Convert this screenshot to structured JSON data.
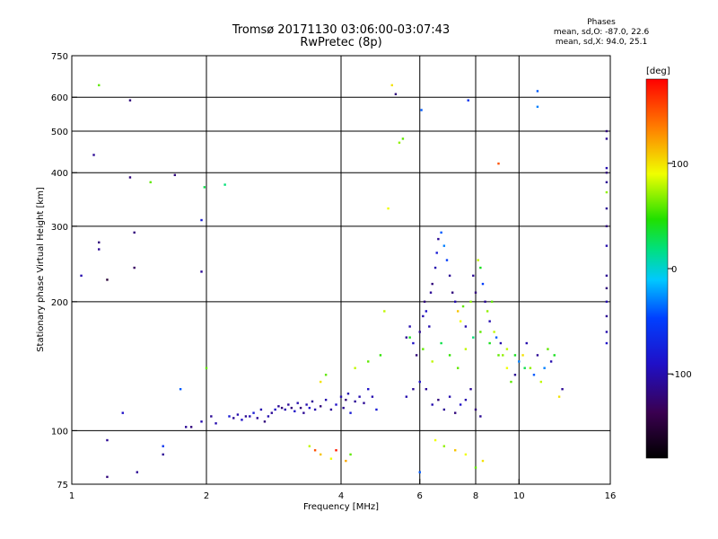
{
  "title_line1": "Tromsø 20171130 03:06:00-03:07:43",
  "title_line2": "RwPretec (8p)",
  "phases": {
    "heading": "Phases",
    "line_o": "mean, sd,O: -87.0, 22.6",
    "line_x": "mean, sd,X:  94.0, 25.1"
  },
  "chart_data": {
    "type": "scatter",
    "xlabel": "Frequency [MHz]",
    "ylabel": "Stationary phase Virtual Height [km]",
    "xscale": "log",
    "yscale": "log",
    "xlim": [
      1,
      16
    ],
    "ylim": [
      75,
      750
    ],
    "xticks": [
      1,
      2,
      4,
      6,
      8,
      10,
      16
    ],
    "yticks": [
      75,
      100,
      200,
      300,
      400,
      500,
      600,
      750
    ],
    "x_gridlines": [
      2,
      4,
      6,
      8,
      10
    ],
    "y_gridlines": [
      100,
      200,
      300,
      400,
      500,
      600
    ],
    "colorbar": {
      "label": "[deg]",
      "range": [
        -180,
        180
      ],
      "ticks": [
        100,
        0,
        -100
      ]
    },
    "series": [
      {
        "values_note": "x = frequency (MHz), y = virtual height (km), phase = colour (deg)",
        "points": [
          [
            1.05,
            230,
            -100
          ],
          [
            1.12,
            440,
            -110
          ],
          [
            1.15,
            640,
            60
          ],
          [
            1.15,
            275,
            -120
          ],
          [
            1.15,
            265,
            -110
          ],
          [
            1.2,
            225,
            -150
          ],
          [
            1.2,
            95,
            -110
          ],
          [
            1.2,
            78,
            -120
          ],
          [
            1.3,
            110,
            -90
          ],
          [
            1.35,
            590,
            -120
          ],
          [
            1.35,
            390,
            -120
          ],
          [
            1.38,
            240,
            -130
          ],
          [
            1.38,
            290,
            -120
          ],
          [
            1.4,
            80,
            -110
          ],
          [
            1.5,
            380,
            60
          ],
          [
            1.6,
            92,
            -60
          ],
          [
            1.6,
            88,
            -110
          ],
          [
            1.7,
            395,
            -120
          ],
          [
            1.75,
            125,
            -40
          ],
          [
            1.8,
            102,
            -110
          ],
          [
            1.85,
            102,
            -120
          ],
          [
            1.95,
            105,
            -100
          ],
          [
            1.95,
            235,
            -110
          ],
          [
            1.95,
            310,
            -80
          ],
          [
            1.98,
            370,
            30
          ],
          [
            2.0,
            140,
            60
          ],
          [
            2.05,
            108,
            -110
          ],
          [
            2.1,
            104,
            -100
          ],
          [
            2.2,
            375,
            20
          ],
          [
            2.25,
            108,
            -80
          ],
          [
            2.3,
            107,
            -110
          ],
          [
            2.35,
            109,
            -100
          ],
          [
            2.4,
            106,
            -90
          ],
          [
            2.45,
            108,
            -110
          ],
          [
            2.5,
            108,
            -100
          ],
          [
            2.55,
            110,
            -80
          ],
          [
            2.6,
            107,
            -110
          ],
          [
            2.65,
            112,
            -100
          ],
          [
            2.7,
            105,
            -120
          ],
          [
            2.75,
            108,
            -100
          ],
          [
            2.8,
            110,
            -110
          ],
          [
            2.85,
            112,
            -90
          ],
          [
            2.9,
            114,
            -110
          ],
          [
            2.95,
            113,
            -120
          ],
          [
            3.0,
            112,
            -100
          ],
          [
            3.05,
            115,
            -110
          ],
          [
            3.1,
            113,
            -120
          ],
          [
            3.15,
            111,
            -90
          ],
          [
            3.2,
            116,
            -100
          ],
          [
            3.25,
            113,
            -120
          ],
          [
            3.3,
            110,
            -110
          ],
          [
            3.35,
            115,
            -100
          ],
          [
            3.4,
            113,
            -90
          ],
          [
            3.45,
            117,
            -110
          ],
          [
            3.5,
            112,
            -100
          ],
          [
            3.6,
            114,
            -120
          ],
          [
            3.7,
            118,
            -100
          ],
          [
            3.8,
            112,
            -110
          ],
          [
            3.9,
            115,
            -90
          ],
          [
            4.0,
            120,
            -100
          ],
          [
            4.05,
            113,
            -110
          ],
          [
            4.1,
            118,
            -120
          ],
          [
            4.15,
            122,
            -100
          ],
          [
            4.2,
            110,
            -80
          ],
          [
            4.3,
            117,
            -110
          ],
          [
            4.4,
            120,
            -100
          ],
          [
            4.5,
            116,
            -110
          ],
          [
            4.6,
            125,
            -90
          ],
          [
            4.7,
            120,
            -100
          ],
          [
            4.8,
            112,
            -80
          ],
          [
            3.4,
            92,
            80
          ],
          [
            3.5,
            90,
            150
          ],
          [
            3.6,
            88,
            110
          ],
          [
            3.8,
            86,
            90
          ],
          [
            3.9,
            90,
            170
          ],
          [
            4.1,
            85,
            120
          ],
          [
            4.2,
            88,
            60
          ],
          [
            3.6,
            130,
            100
          ],
          [
            3.7,
            135,
            60
          ],
          [
            4.3,
            140,
            80
          ],
          [
            4.6,
            145,
            60
          ],
          [
            4.9,
            150,
            50
          ],
          [
            5.0,
            190,
            80
          ],
          [
            5.1,
            330,
            90
          ],
          [
            5.2,
            640,
            100
          ],
          [
            5.3,
            610,
            -120
          ],
          [
            5.4,
            470,
            70
          ],
          [
            5.5,
            480,
            60
          ],
          [
            5.6,
            165,
            -110
          ],
          [
            5.7,
            175,
            -100
          ],
          [
            5.8,
            160,
            -90
          ],
          [
            5.9,
            150,
            -120
          ],
          [
            6.0,
            170,
            -110
          ],
          [
            6.05,
            560,
            -40
          ],
          [
            6.1,
            185,
            -100
          ],
          [
            6.15,
            200,
            -120
          ],
          [
            6.2,
            190,
            -90
          ],
          [
            6.3,
            175,
            -100
          ],
          [
            6.35,
            210,
            -110
          ],
          [
            6.4,
            220,
            -120
          ],
          [
            6.5,
            240,
            -100
          ],
          [
            6.55,
            260,
            -80
          ],
          [
            6.6,
            280,
            -110
          ],
          [
            6.7,
            290,
            -40
          ],
          [
            6.8,
            270,
            -30
          ],
          [
            6.9,
            250,
            -50
          ],
          [
            7.0,
            230,
            -110
          ],
          [
            7.1,
            210,
            -120
          ],
          [
            7.2,
            200,
            -100
          ],
          [
            7.3,
            190,
            110
          ],
          [
            7.4,
            180,
            90
          ],
          [
            7.5,
            195,
            60
          ],
          [
            7.6,
            175,
            -100
          ],
          [
            7.7,
            590,
            -60
          ],
          [
            7.8,
            200,
            70
          ],
          [
            7.9,
            230,
            -110
          ],
          [
            8.0,
            210,
            -120
          ],
          [
            8.1,
            250,
            80
          ],
          [
            8.2,
            240,
            40
          ],
          [
            8.3,
            220,
            -50
          ],
          [
            8.4,
            200,
            -110
          ],
          [
            8.5,
            190,
            70
          ],
          [
            8.6,
            180,
            -100
          ],
          [
            8.7,
            200,
            60
          ],
          [
            8.8,
            170,
            80
          ],
          [
            8.9,
            165,
            -40
          ],
          [
            9.0,
            420,
            150
          ],
          [
            9.1,
            160,
            -100
          ],
          [
            9.2,
            150,
            70
          ],
          [
            9.4,
            140,
            90
          ],
          [
            9.6,
            130,
            60
          ],
          [
            9.8,
            135,
            -110
          ],
          [
            10.0,
            145,
            -30
          ],
          [
            10.2,
            150,
            100
          ],
          [
            10.4,
            160,
            -100
          ],
          [
            10.6,
            140,
            70
          ],
          [
            10.8,
            135,
            -40
          ],
          [
            11.0,
            150,
            -110
          ],
          [
            11.2,
            130,
            80
          ],
          [
            11.4,
            140,
            -30
          ],
          [
            11.6,
            155,
            60
          ],
          [
            11.8,
            145,
            -100
          ],
          [
            12.0,
            150,
            40
          ],
          [
            12.3,
            120,
            100
          ],
          [
            12.5,
            125,
            -110
          ],
          [
            11.0,
            620,
            -40
          ],
          [
            11.0,
            570,
            -30
          ],
          [
            15.7,
            500,
            -120
          ],
          [
            15.7,
            480,
            -110
          ],
          [
            15.7,
            410,
            -100
          ],
          [
            15.7,
            400,
            -120
          ],
          [
            15.7,
            380,
            -110
          ],
          [
            15.7,
            360,
            70
          ],
          [
            15.7,
            330,
            -110
          ],
          [
            15.7,
            300,
            -120
          ],
          [
            15.7,
            270,
            -100
          ],
          [
            15.7,
            230,
            -110
          ],
          [
            15.7,
            215,
            -120
          ],
          [
            15.7,
            200,
            -100
          ],
          [
            15.7,
            185,
            -110
          ],
          [
            15.7,
            170,
            -100
          ],
          [
            15.7,
            160,
            -90
          ],
          [
            5.6,
            120,
            -100
          ],
          [
            5.8,
            125,
            -110
          ],
          [
            6.0,
            130,
            -90
          ],
          [
            6.2,
            125,
            -110
          ],
          [
            6.4,
            115,
            -100
          ],
          [
            6.6,
            118,
            -120
          ],
          [
            6.8,
            112,
            -110
          ],
          [
            7.0,
            120,
            -100
          ],
          [
            7.2,
            110,
            -120
          ],
          [
            7.4,
            115,
            -90
          ],
          [
            7.6,
            118,
            -100
          ],
          [
            7.8,
            125,
            -110
          ],
          [
            8.0,
            112,
            -120
          ],
          [
            8.2,
            108,
            -110
          ],
          [
            6.5,
            95,
            90
          ],
          [
            6.8,
            92,
            70
          ],
          [
            7.2,
            90,
            110
          ],
          [
            7.6,
            88,
            90
          ],
          [
            8.0,
            82,
            60
          ],
          [
            8.3,
            85,
            100
          ],
          [
            6.0,
            80,
            -40
          ],
          [
            5.7,
            165,
            40
          ],
          [
            6.1,
            155,
            60
          ],
          [
            6.4,
            145,
            80
          ],
          [
            6.7,
            160,
            30
          ],
          [
            7.0,
            150,
            50
          ],
          [
            7.3,
            140,
            60
          ],
          [
            7.6,
            155,
            80
          ],
          [
            7.9,
            165,
            20
          ],
          [
            8.2,
            170,
            60
          ],
          [
            8.6,
            160,
            40
          ],
          [
            9.0,
            150,
            60
          ],
          [
            9.4,
            155,
            80
          ],
          [
            9.8,
            150,
            40
          ],
          [
            10.3,
            140,
            30
          ]
        ]
      }
    ]
  }
}
